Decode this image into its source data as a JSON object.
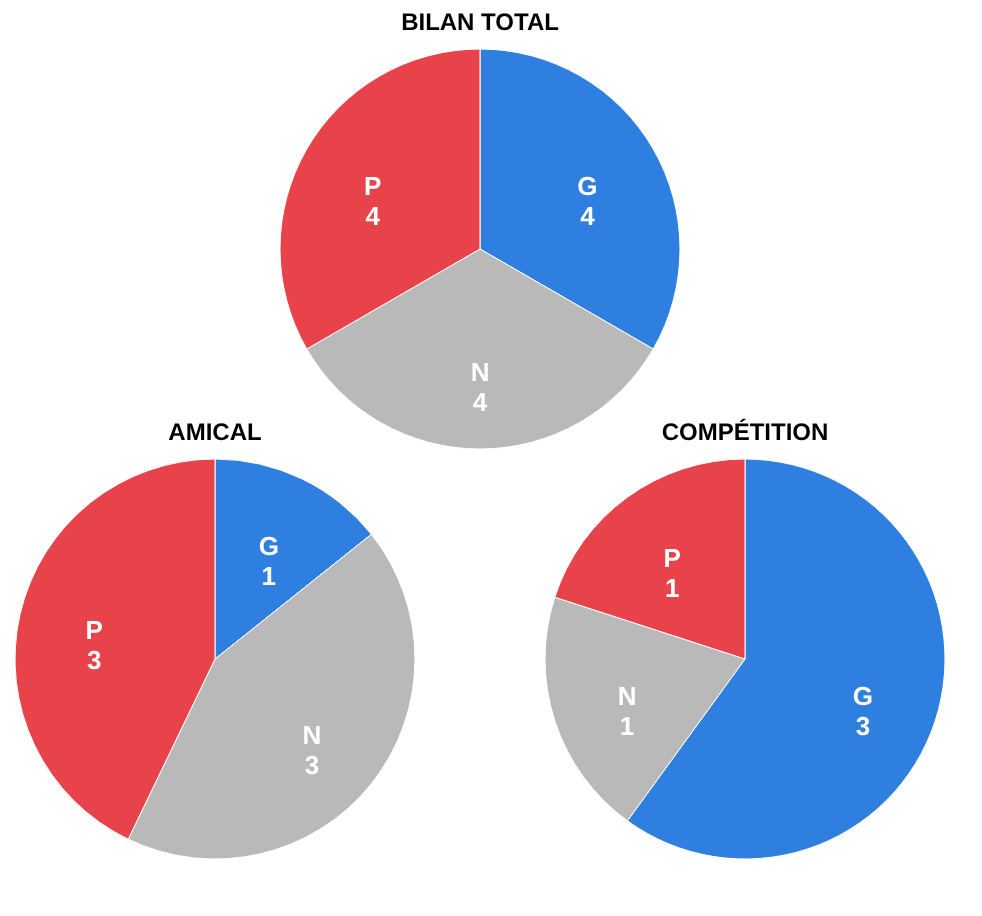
{
  "chart_data": [
    {
      "type": "pie",
      "title": "BILAN TOTAL",
      "categories": [
        "G",
        "N",
        "P"
      ],
      "values": [
        4,
        4,
        4
      ],
      "colors": [
        "#2f7fe0",
        "#b9b9b9",
        "#e8434b"
      ],
      "data_labels": true
    },
    {
      "type": "pie",
      "title": "AMICAL",
      "categories": [
        "G",
        "N",
        "P"
      ],
      "values": [
        1,
        3,
        3
      ],
      "colors": [
        "#2f7fe0",
        "#b9b9b9",
        "#e8434b"
      ],
      "data_labels": true
    },
    {
      "type": "pie",
      "title": "COMPÉTITION",
      "categories": [
        "G",
        "N",
        "P"
      ],
      "values": [
        3,
        1,
        1
      ],
      "colors": [
        "#2f7fe0",
        "#b9b9b9",
        "#e8434b"
      ],
      "data_labels": true
    }
  ]
}
